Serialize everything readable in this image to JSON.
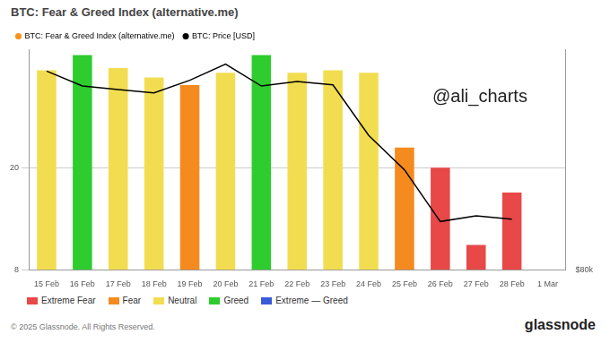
{
  "chart_data": {
    "type": "bar",
    "title": "BTC: Fear & Greed Index (alternative.me)",
    "categories": [
      "15 Feb",
      "16 Feb",
      "17 Feb",
      "18 Feb",
      "19 Feb",
      "20 Feb",
      "21 Feb",
      "22 Feb",
      "23 Feb",
      "24 Feb",
      "25 Feb",
      "26 Feb",
      "27 Feb",
      "28 Feb",
      "1 Mar"
    ],
    "series": [
      {
        "name": "BTC: Fear & Greed Index (alternative.me)",
        "type": "bar",
        "color": "#f7931a",
        "colors": [
          "#f2dd50",
          "#2ecc2e",
          "#f2dd50",
          "#f2dd50",
          "#f58a1f",
          "#f2dd50",
          "#2ecc2e",
          "#f2dd50",
          "#f2dd50",
          "#f2dd50",
          "#f58a1f",
          "#e84848",
          "#e84848",
          "#e84848",
          "#f2dd50"
        ],
        "values": [
          48,
          55,
          49,
          45,
          42,
          47,
          55,
          47,
          48,
          47,
          24,
          20,
          10,
          16,
          null
        ]
      },
      {
        "name": "BTC: Price [USD]",
        "type": "line",
        "color": "#000000",
        "axis": "y2",
        "values": [
          97300,
          96000,
          95700,
          95400,
          96500,
          97900,
          96000,
          96400,
          96100,
          91700,
          88700,
          84200,
          84700,
          84400,
          null
        ]
      }
    ],
    "ylim": [
      8,
      58
    ],
    "yticks": [
      8,
      20
    ],
    "log": "y",
    "y2lim": [
      80000,
      99200
    ],
    "y2ticks": [
      {
        "value": 80000,
        "label": "$80k"
      }
    ],
    "grid": true,
    "legend": "top-left",
    "color_legend": [
      {
        "name": "Extreme Fear",
        "color": "#e84848"
      },
      {
        "name": "Fear",
        "color": "#f58a1f"
      },
      {
        "name": "Neutral",
        "color": "#f2dd50"
      },
      {
        "name": "Greed",
        "color": "#2ecc2e"
      },
      {
        "name": "Extreme — Greed",
        "color": "#3a5bd9"
      }
    ],
    "annotations": [
      "@ali_charts"
    ],
    "footer": "© 2025 Glassnode. All Rights Reserved.",
    "source": "glassnode"
  }
}
